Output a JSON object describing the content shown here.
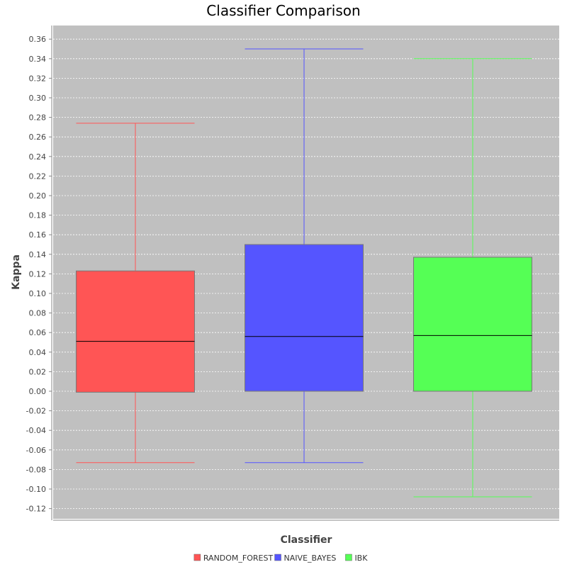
{
  "chart_data": {
    "type": "box",
    "title": "Classifier Comparison",
    "xlabel": "Classifier",
    "ylabel": "Kappa",
    "ylim": [
      -0.13,
      0.37
    ],
    "yticks": [
      -0.12,
      -0.1,
      -0.08,
      -0.06,
      -0.04,
      -0.02,
      0.0,
      0.02,
      0.04,
      0.06,
      0.08,
      0.1,
      0.12,
      0.14,
      0.16,
      0.18,
      0.2,
      0.22,
      0.24,
      0.26,
      0.28,
      0.3,
      0.32,
      0.34,
      0.36
    ],
    "grid": true,
    "legend_position": "bottom",
    "plot_background": "#c0c0c0",
    "series": [
      {
        "name": "RANDOM_FOREST",
        "color": "#ff5555",
        "min": -0.073,
        "q1": -0.001,
        "median": 0.051,
        "q3": 0.123,
        "max": 0.274
      },
      {
        "name": "NAIVE_BAYES",
        "color": "#5555ff",
        "min": -0.073,
        "q1": 0.0,
        "median": 0.056,
        "q3": 0.15,
        "max": 0.35
      },
      {
        "name": "IBK",
        "color": "#55ff55",
        "min": -0.108,
        "q1": 0.0,
        "median": 0.057,
        "q3": 0.137,
        "max": 0.34
      }
    ]
  }
}
